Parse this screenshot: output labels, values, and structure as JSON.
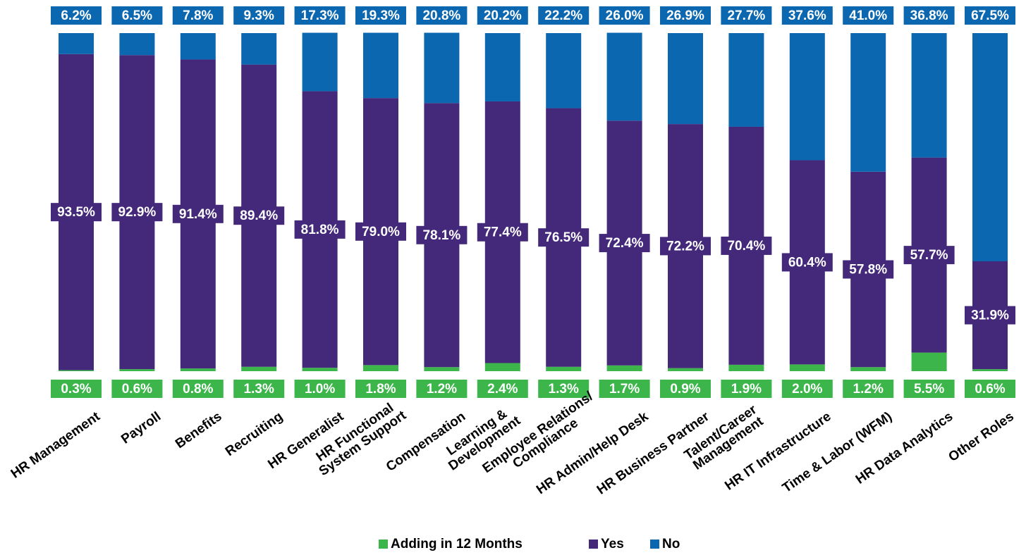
{
  "chart_data": {
    "type": "stacked_bar",
    "categories": [
      [
        "HR Management"
      ],
      [
        "Payroll"
      ],
      [
        "Benefits"
      ],
      [
        "Recruiting"
      ],
      [
        "HR Generalist"
      ],
      [
        "HR Functional",
        "System Support"
      ],
      [
        "Compensation"
      ],
      [
        "Learning &",
        "Development"
      ],
      [
        "Employee Relations/",
        "Compliance"
      ],
      [
        "HR Admin/Help Desk"
      ],
      [
        "HR Business Partner"
      ],
      [
        "Talent/Career",
        "Management"
      ],
      [
        "HR IT Infrastructure"
      ],
      [
        "Time & Labor (WFM)"
      ],
      [
        "HR Data Analytics"
      ],
      [
        "Other Roles"
      ]
    ],
    "series": [
      {
        "name": "Adding in 12 Months",
        "color": "#3cb54a",
        "values": [
          0.3,
          0.6,
          0.8,
          1.3,
          1.0,
          1.8,
          1.2,
          2.4,
          1.3,
          1.7,
          0.9,
          1.9,
          2.0,
          1.2,
          5.5,
          0.6
        ],
        "value_labels": [
          "0.3%",
          "0.6%",
          "0.8%",
          "1.3%",
          "1.0%",
          "1.8%",
          "1.2%",
          "2.4%",
          "1.3%",
          "1.7%",
          "0.9%",
          "1.9%",
          "2.0%",
          "1.2%",
          "5.5%",
          "0.6%"
        ]
      },
      {
        "name": "Yes",
        "color": "#44287a",
        "values": [
          93.5,
          92.9,
          91.4,
          89.4,
          81.8,
          79.0,
          78.1,
          77.4,
          76.5,
          72.4,
          72.2,
          70.4,
          60.4,
          57.8,
          57.7,
          31.9
        ],
        "value_labels": [
          "93.5%",
          "92.9%",
          "91.4%",
          "89.4%",
          "81.8%",
          "79.0%",
          "78.1%",
          "77.4%",
          "76.5%",
          "72.4%",
          "72.2%",
          "70.4%",
          "60.4%",
          "57.8%",
          "57.7%",
          "31.9%"
        ]
      },
      {
        "name": "No",
        "color": "#0b67b0",
        "values": [
          6.2,
          6.5,
          7.8,
          9.3,
          17.3,
          19.3,
          20.8,
          20.2,
          22.2,
          26.0,
          26.9,
          27.7,
          37.6,
          41.0,
          36.8,
          67.5
        ],
        "value_labels": [
          "6.2%",
          "6.5%",
          "7.8%",
          "9.3%",
          "17.3%",
          "19.3%",
          "20.8%",
          "20.2%",
          "22.2%",
          "26.0%",
          "26.9%",
          "27.7%",
          "37.6%",
          "41.0%",
          "36.8%",
          "67.5%"
        ]
      }
    ],
    "ylim": [
      0,
      100
    ],
    "legend": "bottom"
  }
}
